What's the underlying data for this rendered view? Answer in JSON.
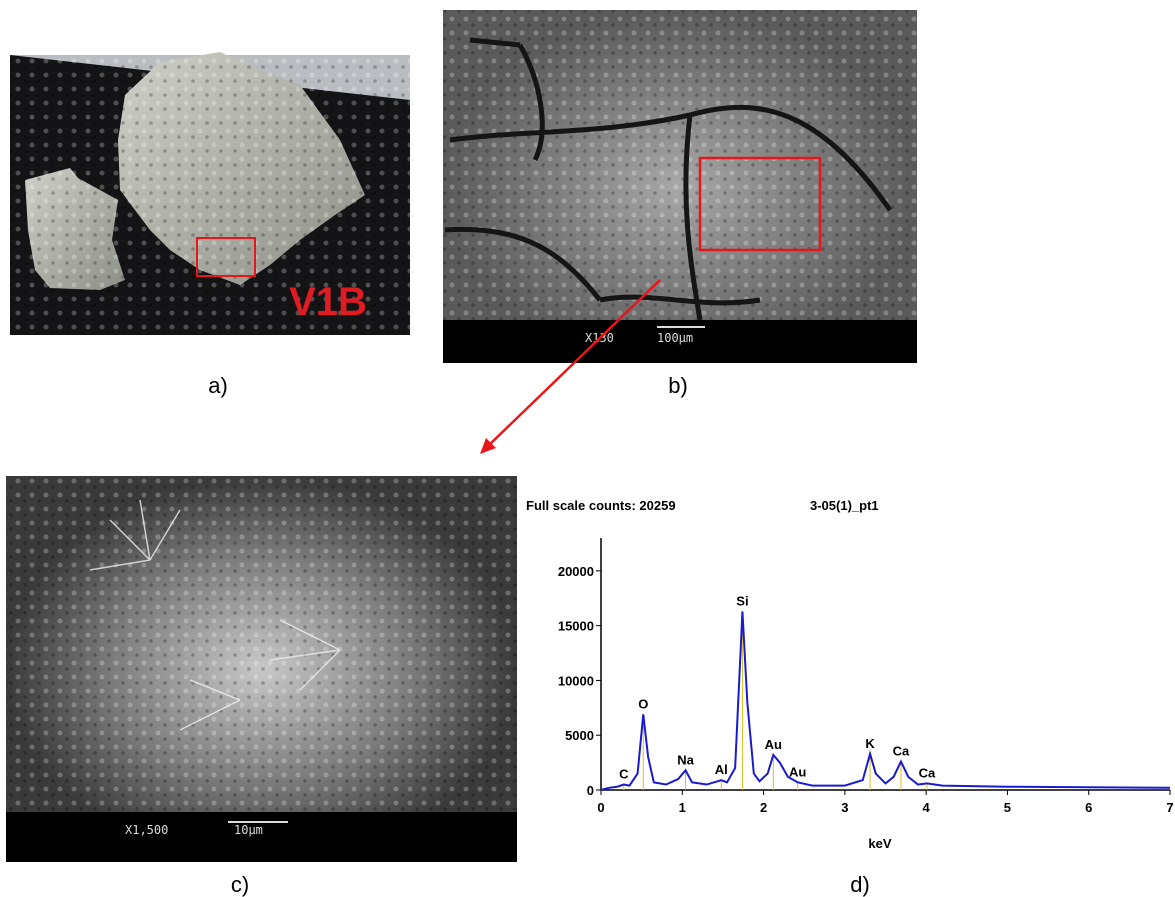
{
  "panels": [
    {
      "label": "a)",
      "annotation": "V1B"
    },
    {
      "label": "b)",
      "magnification": "X130",
      "scale_bar": "100µm"
    },
    {
      "label": "c)",
      "magnification": "X1,500",
      "scale_bar": "10µm"
    },
    {
      "label": "d)"
    }
  ],
  "chart_data": {
    "type": "line",
    "title": "Full scale counts: 20259",
    "subtitle": "3-05(1)_pt1",
    "x_label": "keV",
    "xlim": [
      0,
      7
    ],
    "xticks": [
      0,
      1,
      2,
      3,
      4,
      5,
      6,
      7
    ],
    "ylim": [
      0,
      23000
    ],
    "yticks": [
      0,
      5000,
      10000,
      15000,
      20000
    ],
    "series": [
      {
        "color": "#1a1ad0",
        "x": [
          0,
          0.1,
          0.2,
          0.28,
          0.35,
          0.45,
          0.52,
          0.58,
          0.65,
          0.8,
          0.95,
          1.04,
          1.12,
          1.3,
          1.48,
          1.55,
          1.65,
          1.74,
          1.8,
          1.88,
          1.95,
          2.05,
          2.12,
          2.2,
          2.3,
          2.42,
          2.6,
          3.0,
          3.22,
          3.31,
          3.38,
          3.5,
          3.6,
          3.69,
          3.78,
          3.9,
          4.01,
          4.2,
          5,
          6,
          7
        ],
        "values": [
          0,
          200,
          300,
          500,
          400,
          1500,
          6900,
          3000,
          700,
          500,
          1000,
          1800,
          700,
          500,
          900,
          700,
          2000,
          16300,
          8000,
          1500,
          800,
          1500,
          3200,
          2500,
          1200,
          700,
          400,
          400,
          900,
          3300,
          1500,
          600,
          1200,
          2600,
          1200,
          500,
          600,
          400,
          300,
          250,
          200
        ]
      }
    ],
    "annotations": [
      {
        "text": "C",
        "x": 0.28,
        "y": 500
      },
      {
        "text": "O",
        "x": 0.52,
        "y": 6900
      },
      {
        "text": "Na",
        "x": 1.04,
        "y": 1800
      },
      {
        "text": "Al",
        "x": 1.48,
        "y": 900
      },
      {
        "text": "Si",
        "x": 1.74,
        "y": 16300
      },
      {
        "text": "Au",
        "x": 2.12,
        "y": 3200
      },
      {
        "text": "Au",
        "x": 2.42,
        "y": 700
      },
      {
        "text": "K",
        "x": 3.31,
        "y": 3300
      },
      {
        "text": "Ca",
        "x": 3.69,
        "y": 2600
      },
      {
        "text": "Ca",
        "x": 4.01,
        "y": 600
      }
    ],
    "annotation_line_color": "#d8c020"
  }
}
